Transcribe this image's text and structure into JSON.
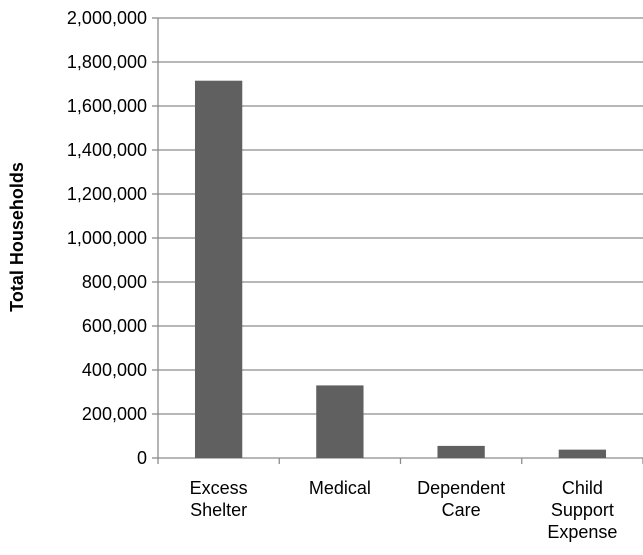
{
  "chart_data": {
    "type": "bar",
    "title": "",
    "xlabel": "",
    "ylabel": "Total Households",
    "categories": [
      [
        "Excess",
        "Shelter"
      ],
      [
        "Medical"
      ],
      [
        "Dependent",
        "Care"
      ],
      [
        "Child",
        "Support",
        "Expense"
      ]
    ],
    "values": [
      1715000,
      330000,
      55000,
      38000
    ],
    "ylim": [
      0,
      2000000
    ],
    "ytick_step": 200000,
    "yticks": [
      "0",
      "200,000",
      "400,000",
      "600,000",
      "800,000",
      "1,000,000",
      "1,200,000",
      "1,400,000",
      "1,600,000",
      "1,800,000",
      "2,000,000"
    ],
    "grid": true,
    "legend": "none",
    "colors": {
      "bar": "#606060",
      "grid": "#8c8c8c",
      "axis": "#8c8c8c",
      "text": "#000000"
    }
  }
}
